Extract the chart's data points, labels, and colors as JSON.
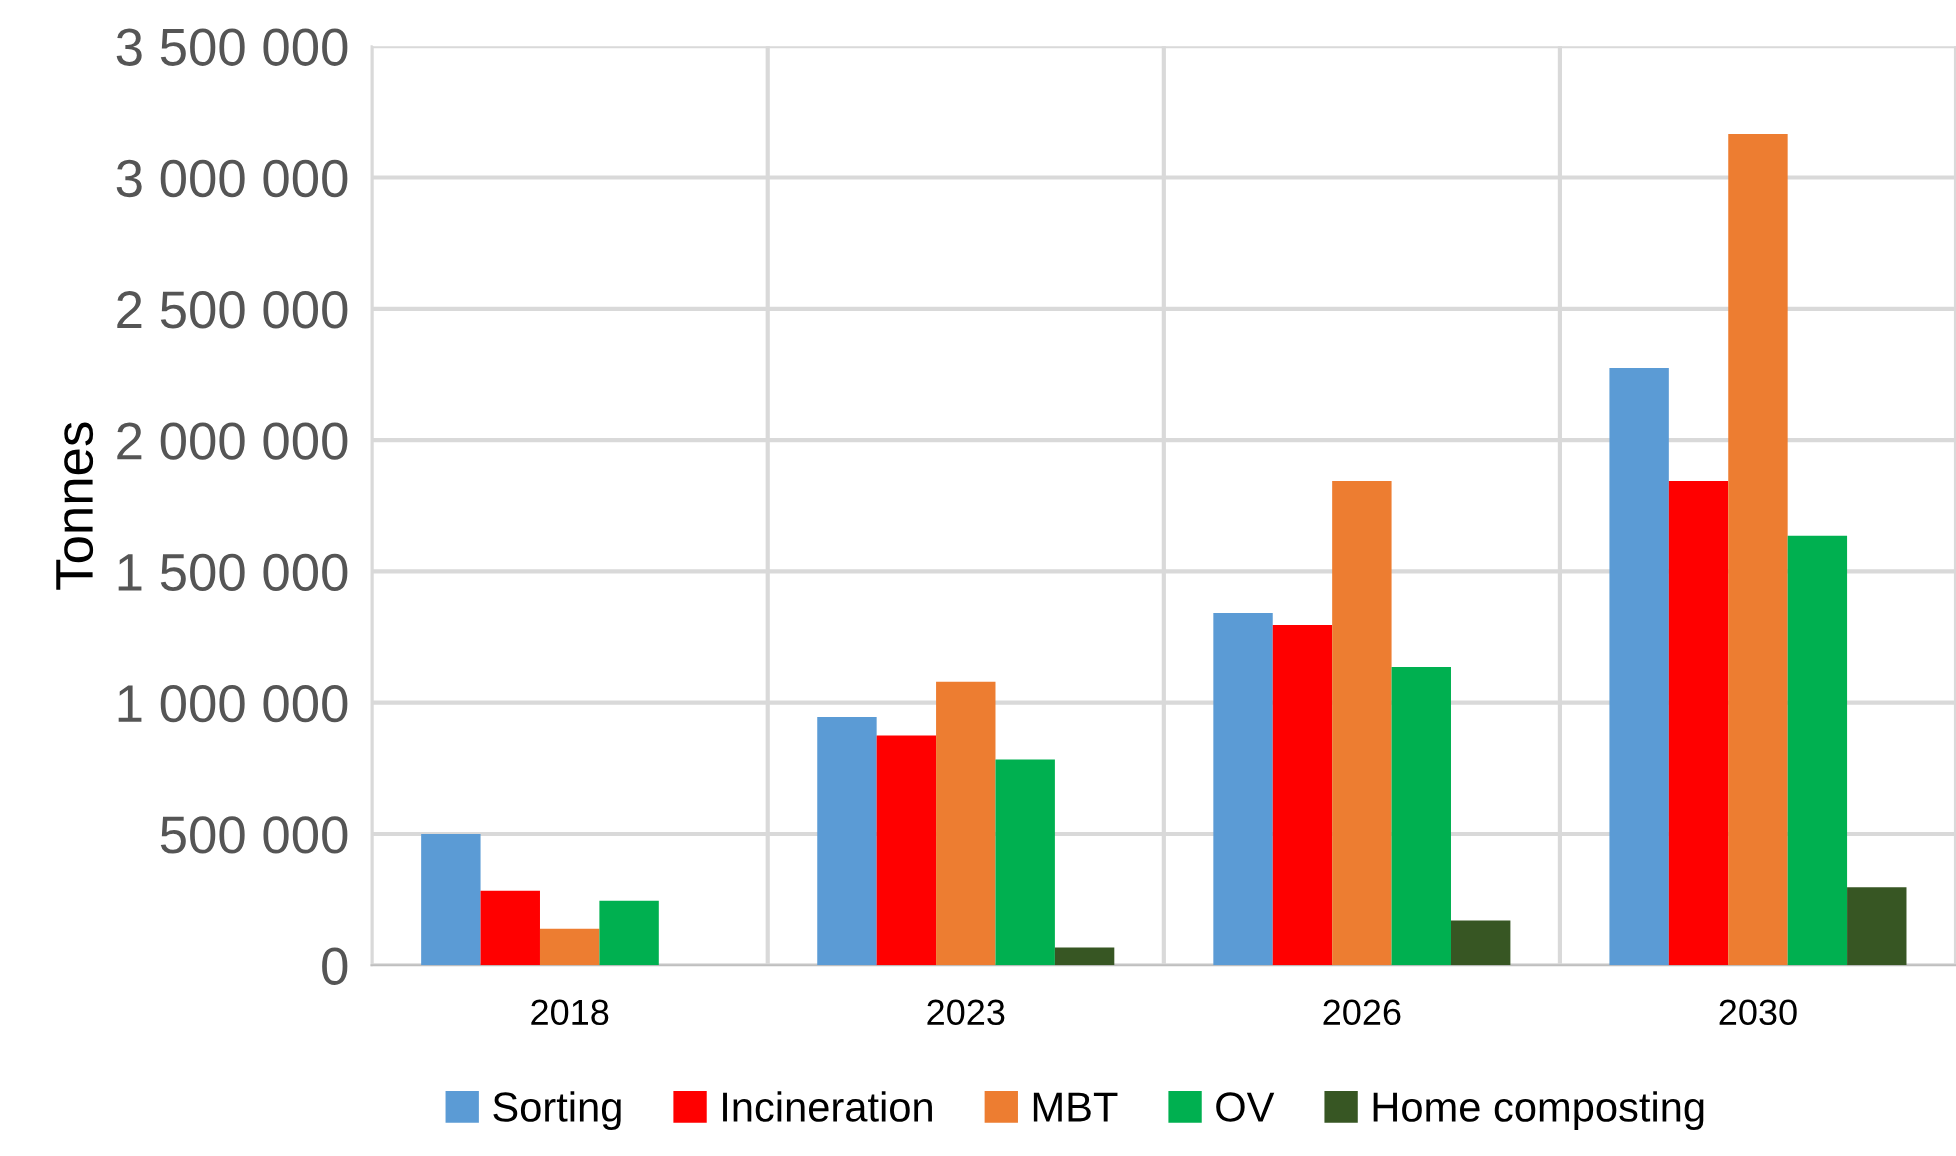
{
  "chart_data": {
    "type": "bar",
    "ylabel": "Tonnes",
    "categories": [
      "2018",
      "2023",
      "2026",
      "2030"
    ],
    "series": [
      {
        "name": "Sorting",
        "color": "#5b9bd5",
        "values": [
          500000,
          945000,
          1342000,
          2275000
        ]
      },
      {
        "name": "Incineration",
        "color": "#ff0000",
        "values": [
          284000,
          875000,
          1296000,
          1844000
        ]
      },
      {
        "name": "MBT",
        "color": "#ed7d31",
        "values": [
          139000,
          1080000,
          1844000,
          3166000
        ]
      },
      {
        "name": "OV",
        "color": "#00b050",
        "values": [
          246000,
          784000,
          1136000,
          1636000
        ]
      },
      {
        "name": "Home composting",
        "color": "#375623",
        "values": [
          0,
          68000,
          170000,
          297000
        ]
      }
    ],
    "ylim": [
      0,
      3500000
    ],
    "yticks": [
      {
        "value": 0,
        "label": "0"
      },
      {
        "value": 500000,
        "label": "500 000"
      },
      {
        "value": 1000000,
        "label": "1 000 000"
      },
      {
        "value": 1500000,
        "label": "1 500 000"
      },
      {
        "value": 2000000,
        "label": "2 000 000"
      },
      {
        "value": 2500000,
        "label": "2 500 000"
      },
      {
        "value": 3000000,
        "label": "3 000 000"
      },
      {
        "value": 3500000,
        "label": "3 500 000"
      }
    ],
    "grid": true,
    "legend": "bottom"
  }
}
